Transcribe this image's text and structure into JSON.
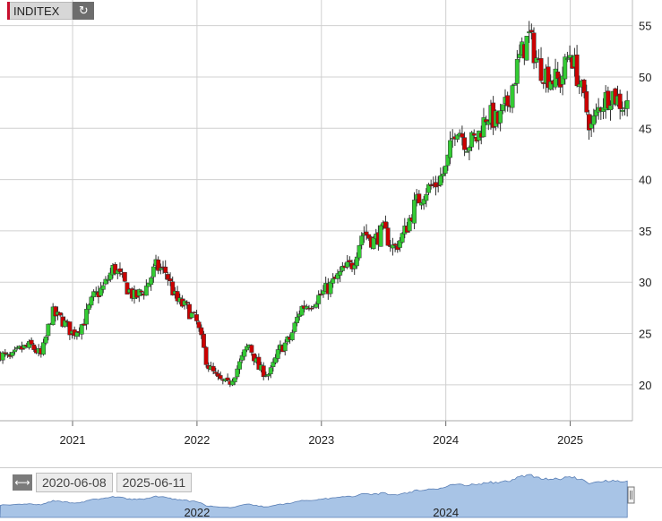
{
  "ticker": {
    "name": "INDITEX",
    "refresh_icon": "refresh-icon"
  },
  "range": {
    "start": "2020-06-08",
    "end": "2025-06-11",
    "toggle_icon": "horizontal-arrows-icon"
  },
  "colors": {
    "up": "#33cc33",
    "down": "#cc0000",
    "wick": "#333333",
    "grid": "#d0d0d0",
    "navigator_fill": "#a8c4e6",
    "navigator_line": "#5a7fb5"
  },
  "chart_data": {
    "type": "candlestick",
    "title": "",
    "x_ticks": [
      "2021",
      "2022",
      "2023",
      "2024",
      "2025"
    ],
    "y_ticks": [
      20,
      25,
      30,
      35,
      40,
      45,
      50,
      55
    ],
    "ylim": [
      16.5,
      57.5
    ],
    "grid": true,
    "navigator_ticks": [
      "2022",
      "2024"
    ],
    "series": [
      {
        "date": "2020-06",
        "close": 23.0
      },
      {
        "date": "2020-07",
        "close": 22.5
      },
      {
        "date": "2020-08",
        "close": 23.5
      },
      {
        "date": "2020-09",
        "close": 23.8
      },
      {
        "date": "2020-10",
        "close": 22.8
      },
      {
        "date": "2020-11",
        "close": 27.0
      },
      {
        "date": "2020-12",
        "close": 26.3
      },
      {
        "date": "2021-01",
        "close": 25.0
      },
      {
        "date": "2021-02",
        "close": 26.0
      },
      {
        "date": "2021-03",
        "close": 28.5
      },
      {
        "date": "2021-04",
        "close": 29.5
      },
      {
        "date": "2021-05",
        "close": 31.5
      },
      {
        "date": "2021-06",
        "close": 29.8
      },
      {
        "date": "2021-07",
        "close": 28.5
      },
      {
        "date": "2021-08",
        "close": 29.3
      },
      {
        "date": "2021-09",
        "close": 31.5
      },
      {
        "date": "2021-10",
        "close": 31.0
      },
      {
        "date": "2021-11",
        "close": 28.2
      },
      {
        "date": "2021-12",
        "close": 27.5
      },
      {
        "date": "2022-01",
        "close": 26.0
      },
      {
        "date": "2022-02",
        "close": 22.0
      },
      {
        "date": "2022-03",
        "close": 20.5
      },
      {
        "date": "2022-04",
        "close": 20.0
      },
      {
        "date": "2022-05",
        "close": 21.8
      },
      {
        "date": "2022-06",
        "close": 24.0
      },
      {
        "date": "2022-07",
        "close": 21.5
      },
      {
        "date": "2022-08",
        "close": 21.0
      },
      {
        "date": "2022-09",
        "close": 23.5
      },
      {
        "date": "2022-10",
        "close": 24.5
      },
      {
        "date": "2022-11",
        "close": 27.5
      },
      {
        "date": "2022-12",
        "close": 28.0
      },
      {
        "date": "2023-01",
        "close": 28.8
      },
      {
        "date": "2023-02",
        "close": 29.8
      },
      {
        "date": "2023-03",
        "close": 31.0
      },
      {
        "date": "2023-04",
        "close": 31.8
      },
      {
        "date": "2023-05",
        "close": 35.0
      },
      {
        "date": "2023-06",
        "close": 34.0
      },
      {
        "date": "2023-07",
        "close": 35.0
      },
      {
        "date": "2023-08",
        "close": 33.2
      },
      {
        "date": "2023-09",
        "close": 34.8
      },
      {
        "date": "2023-10",
        "close": 37.5
      },
      {
        "date": "2023-11",
        "close": 39.0
      },
      {
        "date": "2023-12",
        "close": 39.5
      },
      {
        "date": "2024-01",
        "close": 41.0
      },
      {
        "date": "2024-02",
        "close": 45.5
      },
      {
        "date": "2024-03",
        "close": 43.5
      },
      {
        "date": "2024-04",
        "close": 44.0
      },
      {
        "date": "2024-05",
        "close": 46.5
      },
      {
        "date": "2024-06",
        "close": 45.5
      },
      {
        "date": "2024-07",
        "close": 47.5
      },
      {
        "date": "2024-08",
        "close": 51.5
      },
      {
        "date": "2024-09",
        "close": 54.0
      },
      {
        "date": "2024-10",
        "close": 51.0
      },
      {
        "date": "2024-11",
        "close": 50.0
      },
      {
        "date": "2024-12",
        "close": 49.5
      },
      {
        "date": "2025-01",
        "close": 52.5
      },
      {
        "date": "2025-02",
        "close": 49.0
      },
      {
        "date": "2025-03",
        "close": 45.0
      },
      {
        "date": "2025-04",
        "close": 47.5
      },
      {
        "date": "2025-05",
        "close": 48.5
      },
      {
        "date": "2025-06",
        "close": 47.3
      }
    ]
  }
}
